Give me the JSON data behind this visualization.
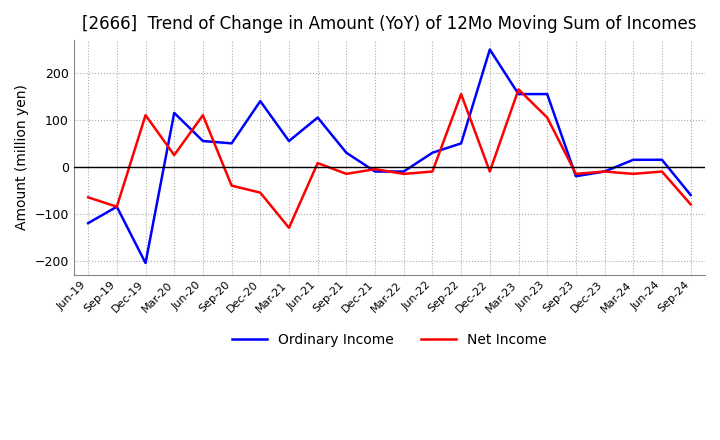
{
  "title": "[2666]  Trend of Change in Amount (YoY) of 12Mo Moving Sum of Incomes",
  "ylabel": "Amount (million yen)",
  "x_labels": [
    "Jun-19",
    "Sep-19",
    "Dec-19",
    "Mar-20",
    "Jun-20",
    "Sep-20",
    "Dec-20",
    "Mar-21",
    "Jun-21",
    "Sep-21",
    "Dec-21",
    "Mar-22",
    "Jun-22",
    "Sep-22",
    "Dec-22",
    "Mar-23",
    "Jun-23",
    "Sep-23",
    "Dec-23",
    "Mar-24",
    "Jun-24",
    "Sep-24"
  ],
  "ordinary_income": [
    -120,
    -85,
    -205,
    115,
    55,
    50,
    140,
    55,
    105,
    30,
    -10,
    -10,
    30,
    50,
    250,
    155,
    155,
    -20,
    -10,
    15,
    15,
    -60
  ],
  "net_income": [
    -65,
    -85,
    110,
    25,
    110,
    -40,
    -55,
    -130,
    8,
    -15,
    -5,
    -15,
    -10,
    155,
    -10,
    165,
    105,
    -15,
    -10,
    -15,
    -10,
    -80
  ],
  "ordinary_color": "#0000FF",
  "net_color": "#FF0000",
  "ylim": [
    -230,
    270
  ],
  "yticks": [
    -200,
    -100,
    0,
    100,
    200
  ],
  "background_color": "#FFFFFF",
  "grid_color": "#AAAAAA",
  "title_fontsize": 12,
  "axis_fontsize": 10,
  "tick_fontsize": 8,
  "legend_labels": [
    "Ordinary Income",
    "Net Income"
  ],
  "line_width": 1.8
}
